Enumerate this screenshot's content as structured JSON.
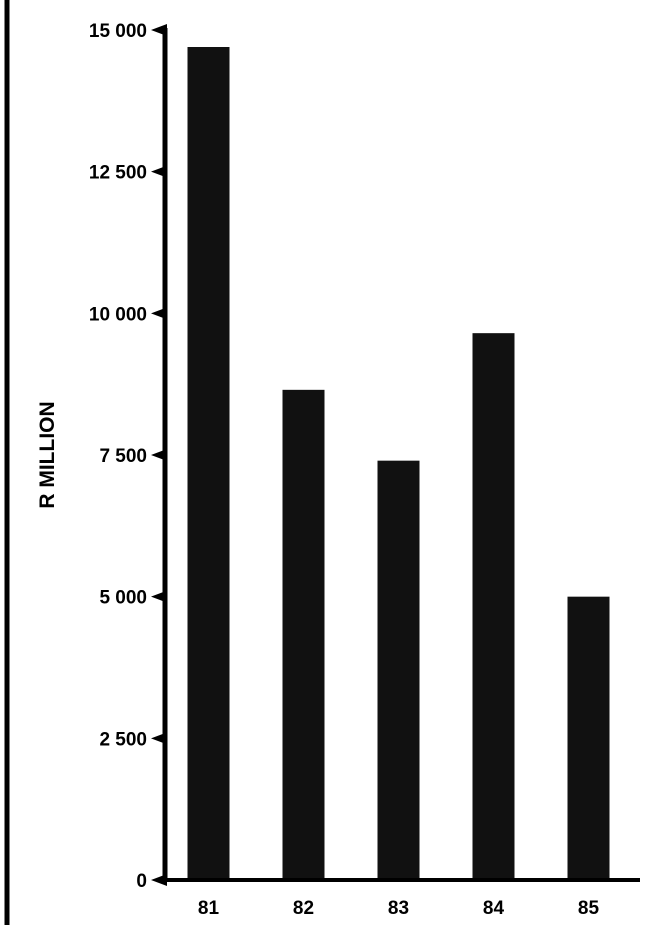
{
  "chart_data": {
    "type": "bar",
    "categories": [
      "81",
      "82",
      "83",
      "84",
      "85"
    ],
    "values": [
      14700,
      8650,
      7400,
      9650,
      5000
    ],
    "ylabel": "R MILLION",
    "xlabel": "",
    "ylim": [
      0,
      15000
    ],
    "yticks": [
      {
        "value": 0,
        "label": "0"
      },
      {
        "value": 2500,
        "label": "2 500"
      },
      {
        "value": 5000,
        "label": "5 000"
      },
      {
        "value": 7500,
        "label": "7 500"
      },
      {
        "value": 10000,
        "label": "10 000"
      },
      {
        "value": 12500,
        "label": "12 500"
      },
      {
        "value": 15000,
        "label": "15 000"
      }
    ],
    "grid": false,
    "bar_color": "#111111"
  }
}
